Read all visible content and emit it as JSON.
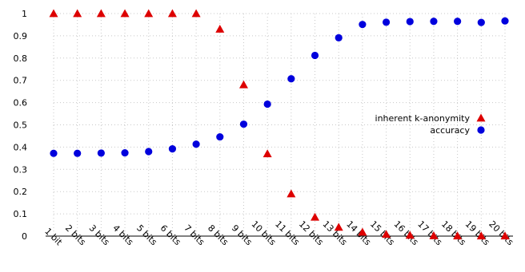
{
  "chart_data": {
    "type": "scatter",
    "title": "",
    "xlabel": "",
    "ylabel": "",
    "categories": [
      "1 bit",
      "2 bits",
      "3 bits",
      "4 bits",
      "5 bits",
      "6 bits",
      "7 bits",
      "8 bits",
      "9 bits",
      "10 bits",
      "11 bits",
      "12 bits",
      "13 bits",
      "14 bits",
      "15 bits",
      "16 bits",
      "17 bits",
      "18 bits",
      "19 bits",
      "20 bits"
    ],
    "ylim": [
      0,
      1
    ],
    "yticks": [
      "0",
      "0.1",
      "0.2",
      "0.3",
      "0.4",
      "0.5",
      "0.6",
      "0.7",
      "0.8",
      "0.9",
      "1"
    ],
    "grid": true,
    "legend_position": "right",
    "series": [
      {
        "name": "inherent k-anonymity",
        "marker": "triangle",
        "color": "#dd0000",
        "values": [
          1.0,
          1.0,
          1.0,
          1.0,
          1.0,
          1.0,
          1.0,
          0.93,
          0.68,
          0.37,
          0.19,
          0.085,
          0.04,
          0.018,
          0.008,
          0.004,
          0.002,
          0.001,
          0.001,
          0.001
        ]
      },
      {
        "name": "accuracy",
        "marker": "circle",
        "color": "#0000dd",
        "values": [
          0.372,
          0.372,
          0.373,
          0.374,
          0.38,
          0.392,
          0.413,
          0.446,
          0.503,
          0.593,
          0.707,
          0.812,
          0.891,
          0.951,
          0.961,
          0.964,
          0.965,
          0.965,
          0.96,
          0.967
        ]
      }
    ]
  }
}
